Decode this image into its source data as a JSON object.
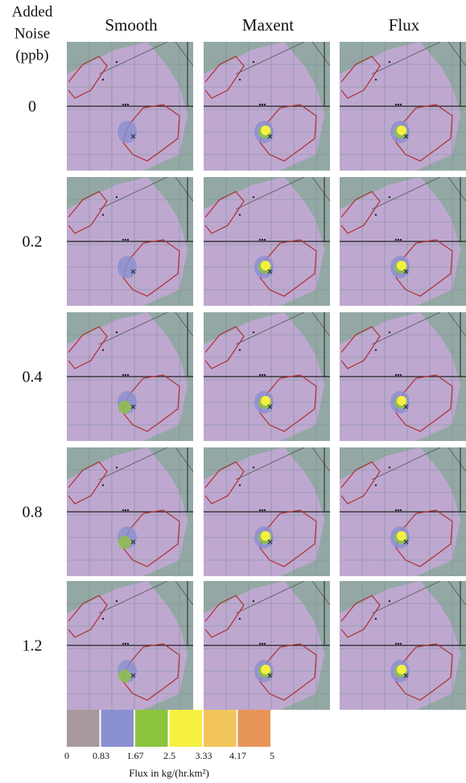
{
  "header_lines": [
    "Added",
    "Noise",
    "(ppb)"
  ],
  "columns": [
    "Smooth",
    "Maxent",
    "Flux"
  ],
  "rows": [
    "0",
    "0.2",
    "0.4",
    "0.8",
    "1.2"
  ],
  "colorbar": {
    "colors": [
      "#a89a9c",
      "#8a8fd0",
      "#8dc43e",
      "#f5f040",
      "#f2c55a",
      "#e8955a"
    ],
    "ticks": [
      "0",
      "0.83",
      "1.67",
      "2.5",
      "3.33",
      "4.17",
      "5"
    ],
    "label": "Flux in kg/(hr.km²)"
  }
}
